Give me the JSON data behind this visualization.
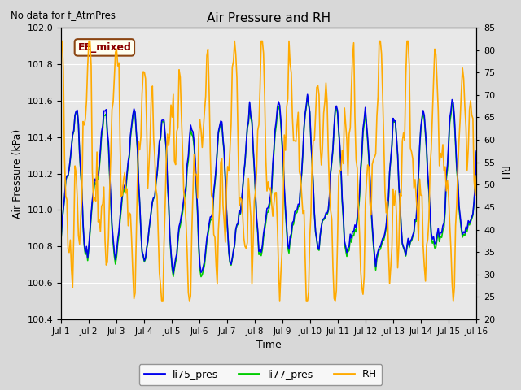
{
  "title": "Air Pressure and RH",
  "top_left_text": "No data for f_AtmPres",
  "box_label": "EE_mixed",
  "ylabel_left": "Air Pressure (kPa)",
  "ylabel_right": "RH",
  "xlabel": "Time",
  "ylim_left": [
    100.4,
    102.0
  ],
  "ylim_right": [
    20,
    85
  ],
  "yticks_left": [
    100.4,
    100.6,
    100.8,
    101.0,
    101.2,
    101.4,
    101.6,
    101.8,
    102.0
  ],
  "yticks_right": [
    20,
    25,
    30,
    35,
    40,
    45,
    50,
    55,
    60,
    65,
    70,
    75,
    80,
    85
  ],
  "xtick_labels": [
    "Jul 1",
    "Jul 2",
    "Jul 3",
    "Jul 4",
    "Jul 5",
    "Jul 6",
    "Jul 7",
    "Jul 8",
    "Jul 9",
    "Jul 10",
    "Jul 11",
    "Jul 12",
    "Jul 13",
    "Jul 14",
    "Jul 15",
    "Jul 16"
  ],
  "bg_color": "#d8d8d8",
  "plot_bg_color": "#e8e8e8",
  "line_blue_color": "#0000ee",
  "line_green_color": "#00cc00",
  "line_orange_color": "#ffaa00",
  "legend_labels": [
    "li75_pres",
    "li77_pres",
    "RH"
  ]
}
